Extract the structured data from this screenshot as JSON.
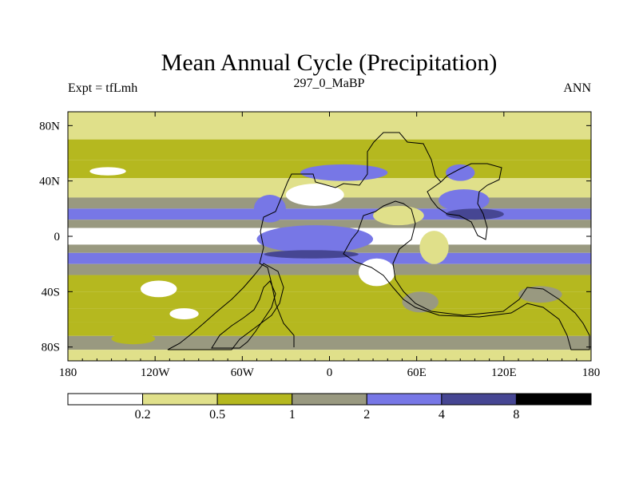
{
  "chart_data": {
    "type": "heatmap",
    "title": "Mean Annual Cycle (Precipitation)",
    "left_string": "Expt = tfLmh",
    "center_string": "297_0_MaBP",
    "right_string": "ANN",
    "x_ticks": [
      "180",
      "120W",
      "60W",
      "0",
      "60E",
      "120E",
      "180"
    ],
    "x_tick_values": [
      -180,
      -120,
      -60,
      0,
      60,
      120,
      180
    ],
    "y_ticks": [
      "80N",
      "40N",
      "0",
      "40S",
      "80S"
    ],
    "y_tick_values": [
      80,
      40,
      0,
      -40,
      -80
    ],
    "xlim": [
      -180,
      180
    ],
    "ylim": [
      -90,
      90
    ],
    "colorbar": {
      "levels": [
        "0.2",
        "0.5",
        "1",
        "2",
        "4",
        "8"
      ],
      "level_values": [
        0.2,
        0.5,
        1,
        2,
        4,
        8
      ],
      "colors": [
        "#ffffff",
        "#e0e08a",
        "#b5b81f",
        "#999980",
        "#7777e6",
        "#464693",
        "#000000"
      ]
    },
    "zonal_bands": [
      {
        "lat": [
          70,
          90
        ],
        "value": 0.3
      },
      {
        "lat": [
          55,
          70
        ],
        "value": 0.7
      },
      {
        "lat": [
          42,
          55
        ],
        "value": 0.6
      },
      {
        "lat": [
          28,
          42
        ],
        "value": 0.4
      },
      {
        "lat": [
          20,
          28
        ],
        "value": 1.4
      },
      {
        "lat": [
          12,
          20
        ],
        "value": 2.5
      },
      {
        "lat": [
          6,
          12
        ],
        "value": 1.3
      },
      {
        "lat": [
          -6,
          6
        ],
        "value": 0.1
      },
      {
        "lat": [
          -12,
          -6
        ],
        "value": 1.6
      },
      {
        "lat": [
          -20,
          -12
        ],
        "value": 2.6
      },
      {
        "lat": [
          -28,
          -20
        ],
        "value": 1.4
      },
      {
        "lat": [
          -40,
          -28
        ],
        "value": 0.7
      },
      {
        "lat": [
          -52,
          -40
        ],
        "value": 0.6
      },
      {
        "lat": [
          -62,
          -52
        ],
        "value": 0.8
      },
      {
        "lat": [
          -72,
          -62
        ],
        "value": 0.7
      },
      {
        "lat": [
          -82,
          -72
        ],
        "value": 1.4
      },
      {
        "lat": [
          -90,
          -82
        ],
        "value": 0.3
      }
    ],
    "patches": [
      {
        "lon": [
          -130,
          -105
        ],
        "lat": [
          -44,
          -32
        ],
        "value": 0.1
      },
      {
        "lon": [
          -165,
          -140
        ],
        "lat": [
          44,
          50
        ],
        "value": 0.1
      },
      {
        "lon": [
          -110,
          -90
        ],
        "lat": [
          -60,
          -52
        ],
        "value": 0.1
      },
      {
        "lon": [
          -150,
          -120
        ],
        "lat": [
          -78,
          -70
        ],
        "value": 0.7
      },
      {
        "lon": [
          -30,
          10
        ],
        "lat": [
          22,
          38
        ],
        "value": 0.1
      },
      {
        "lon": [
          -52,
          -30
        ],
        "lat": [
          10,
          30
        ],
        "value": 2.2
      },
      {
        "lon": [
          -50,
          30
        ],
        "lat": [
          -12,
          8
        ],
        "value": 3.0
      },
      {
        "lon": [
          -45,
          20
        ],
        "lat": [
          -16,
          -10
        ],
        "value": 5.0
      },
      {
        "lon": [
          30,
          65
        ],
        "lat": [
          8,
          22
        ],
        "value": 0.4
      },
      {
        "lon": [
          20,
          45
        ],
        "lat": [
          -36,
          -16
        ],
        "value": 0.1
      },
      {
        "lon": [
          62,
          82
        ],
        "lat": [
          -20,
          4
        ],
        "value": 0.4
      },
      {
        "lon": [
          75,
          110
        ],
        "lat": [
          18,
          34
        ],
        "value": 3.0
      },
      {
        "lon": [
          80,
          120
        ],
        "lat": [
          12,
          20
        ],
        "value": 5.5
      },
      {
        "lon": [
          80,
          100
        ],
        "lat": [
          40,
          52
        ],
        "value": 2.6
      },
      {
        "lon": [
          50,
          75
        ],
        "lat": [
          -55,
          -40
        ],
        "value": 1.5
      },
      {
        "lon": [
          130,
          160
        ],
        "lat": [
          -48,
          -36
        ],
        "value": 1.4
      },
      {
        "lon": [
          -20,
          40
        ],
        "lat": [
          40,
          52
        ],
        "value": 2.1
      }
    ]
  }
}
